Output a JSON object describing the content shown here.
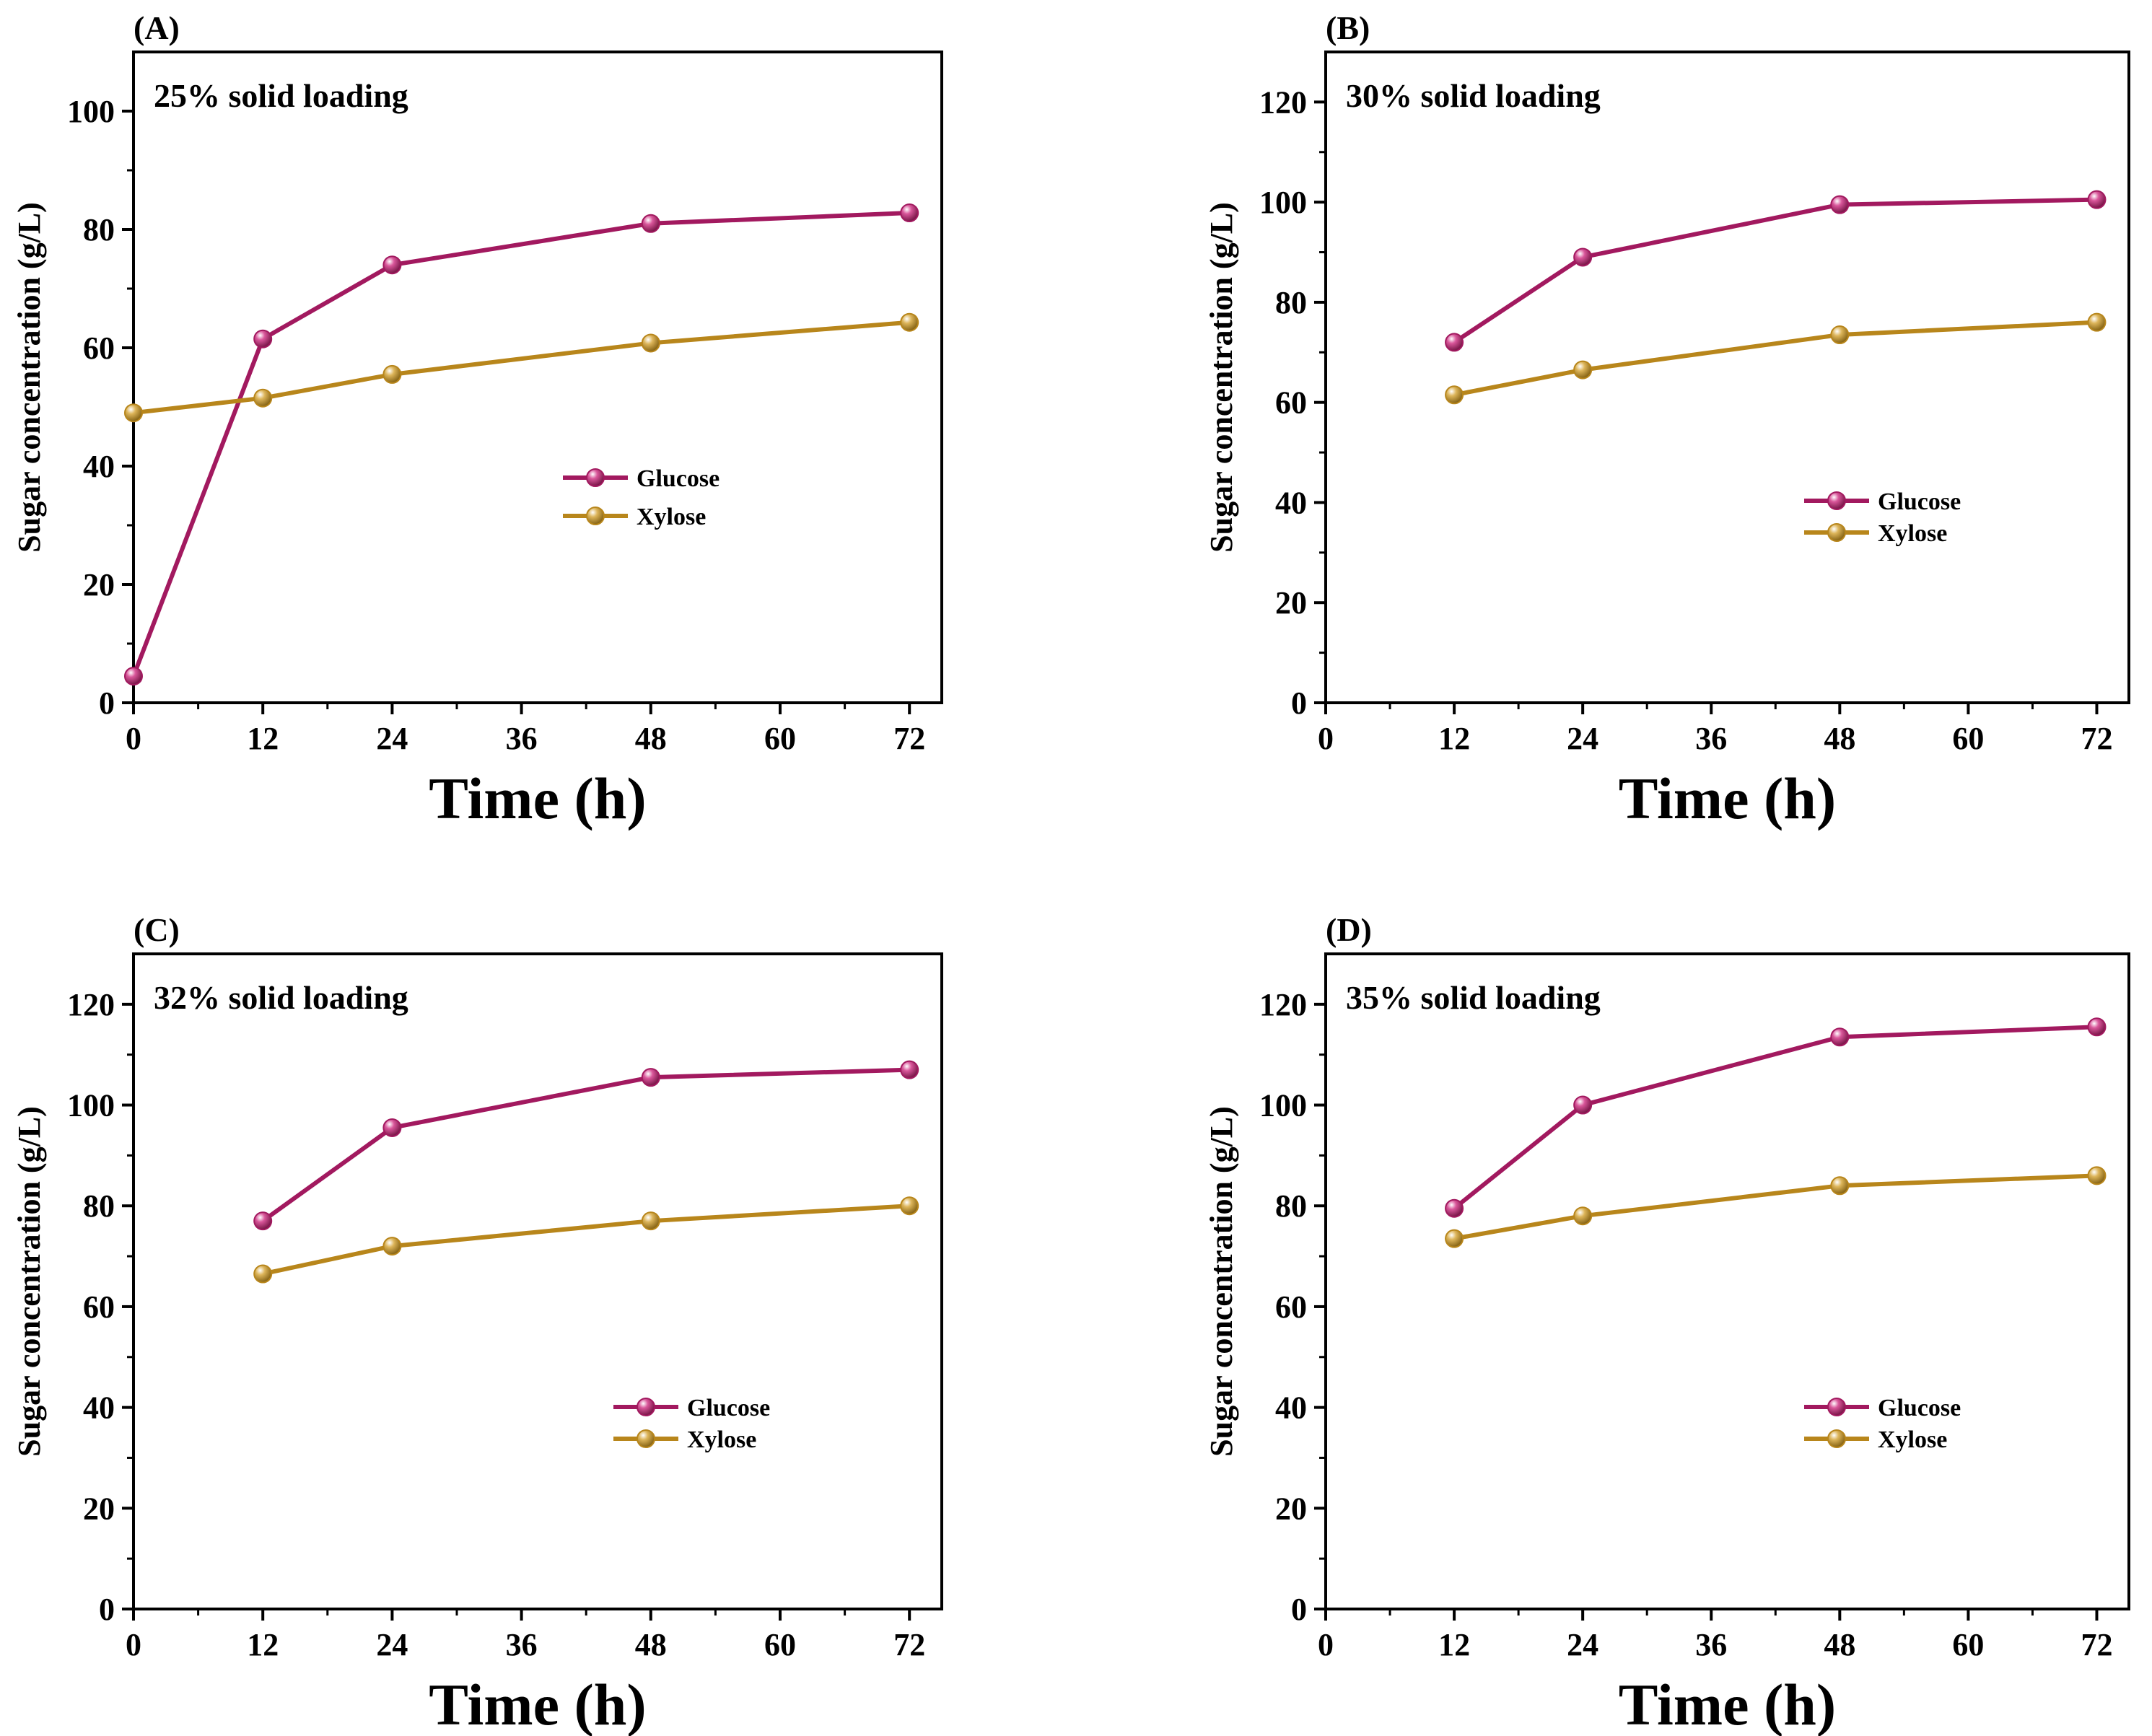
{
  "colors": {
    "glucose": "#a2195f",
    "xylose": "#b8861b",
    "axis": "#000000"
  },
  "legend_items": [
    "Glucose",
    "Xylose"
  ],
  "chart_data": [
    {
      "type": "line",
      "panel": "(A)",
      "title": "25% solid loading",
      "xlabel": "Time (h)",
      "ylabel": "Sugar concentration (g/L)",
      "xlim": [
        0,
        75
      ],
      "ylim": [
        0,
        110
      ],
      "xticks": [
        0,
        12,
        24,
        36,
        48,
        60,
        72
      ],
      "yticks": [
        0,
        20,
        40,
        60,
        80,
        100
      ],
      "legend_position": "center-right",
      "series": [
        {
          "name": "Glucose",
          "x": [
            0,
            12,
            24,
            48,
            72
          ],
          "values": [
            4.5,
            61.5,
            74,
            81,
            82.8
          ]
        },
        {
          "name": "Xylose",
          "x": [
            0,
            12,
            24,
            48,
            72
          ],
          "values": [
            49,
            51.5,
            55.5,
            60.8,
            64.3
          ]
        }
      ]
    },
    {
      "type": "line",
      "panel": "(B)",
      "title": "30% solid loading",
      "xlabel": "Time (h)",
      "ylabel": "Sugar concentration (g/L)",
      "xlim": [
        0,
        75
      ],
      "ylim": [
        0,
        130
      ],
      "xticks": [
        0,
        12,
        24,
        36,
        48,
        60,
        72
      ],
      "yticks": [
        0,
        20,
        40,
        60,
        80,
        100,
        120
      ],
      "legend_position": "center-right",
      "series": [
        {
          "name": "Glucose",
          "x": [
            12,
            24,
            48,
            72
          ],
          "values": [
            72,
            89,
            99.5,
            100.5
          ]
        },
        {
          "name": "Xylose",
          "x": [
            12,
            24,
            48,
            72
          ],
          "values": [
            61.5,
            66.5,
            73.5,
            76
          ]
        }
      ]
    },
    {
      "type": "line",
      "panel": "(C)",
      "title": "32% solid loading",
      "xlabel": "Time (h)",
      "ylabel": "Sugar concentration (g/L)",
      "xlim": [
        0,
        75
      ],
      "ylim": [
        0,
        130
      ],
      "xticks": [
        0,
        12,
        24,
        36,
        48,
        60,
        72
      ],
      "yticks": [
        0,
        20,
        40,
        60,
        80,
        100,
        120
      ],
      "legend_position": "lower-right",
      "series": [
        {
          "name": "Glucose",
          "x": [
            12,
            24,
            48,
            72
          ],
          "values": [
            77,
            95.5,
            105.5,
            107
          ]
        },
        {
          "name": "Xylose",
          "x": [
            12,
            24,
            48,
            72
          ],
          "values": [
            66.5,
            72,
            77,
            80
          ]
        }
      ]
    },
    {
      "type": "line",
      "panel": "(D)",
      "title": "35% solid loading",
      "xlabel": "Time (h)",
      "ylabel": "Sugar concentration (g/L)",
      "xlim": [
        0,
        75
      ],
      "ylim": [
        0,
        130
      ],
      "xticks": [
        0,
        12,
        24,
        36,
        48,
        60,
        72
      ],
      "yticks": [
        0,
        20,
        40,
        60,
        80,
        100,
        120
      ],
      "legend_position": "lower-right",
      "series": [
        {
          "name": "Glucose",
          "x": [
            12,
            24,
            48,
            72
          ],
          "values": [
            79.5,
            100,
            113.5,
            115.5
          ]
        },
        {
          "name": "Xylose",
          "x": [
            12,
            24,
            48,
            72
          ],
          "values": [
            73.5,
            78,
            84,
            86
          ]
        }
      ]
    }
  ]
}
